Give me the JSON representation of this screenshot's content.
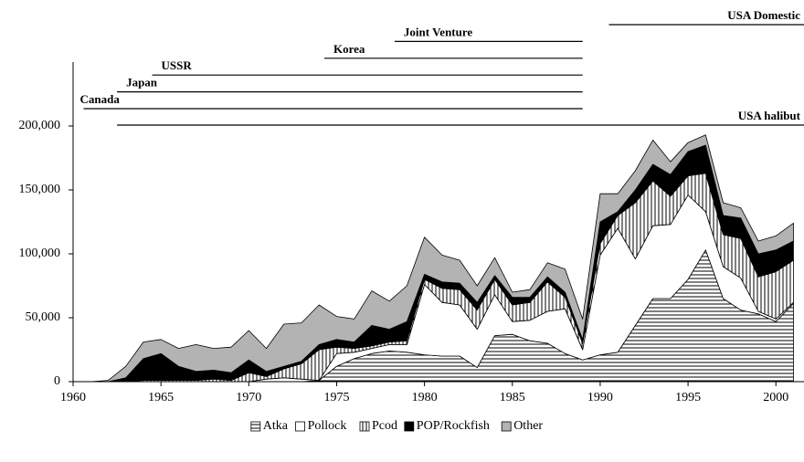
{
  "chart_data": {
    "type": "stacked_area",
    "x": [
      1961,
      1962,
      1963,
      1964,
      1965,
      1966,
      1967,
      1968,
      1969,
      1970,
      1971,
      1972,
      1973,
      1974,
      1975,
      1976,
      1977,
      1978,
      1979,
      1980,
      1981,
      1982,
      1983,
      1984,
      1985,
      1986,
      1987,
      1988,
      1989,
      1990,
      1991,
      1992,
      1993,
      1994,
      1995,
      1996,
      1997,
      1998,
      1999,
      2000,
      2001
    ],
    "series": [
      {
        "name": "Atka",
        "color": "#000000",
        "pattern": "horizontal",
        "values": [
          0,
          0,
          0,
          0,
          0,
          0,
          0,
          0,
          0,
          0,
          0,
          0,
          0,
          1000,
          12000,
          18000,
          22000,
          24000,
          23000,
          21000,
          20000,
          20000,
          11000,
          36000,
          37000,
          32000,
          30000,
          22000,
          17000,
          21000,
          23000,
          44000,
          65000,
          65000,
          80000,
          103000,
          65000,
          56000,
          53000,
          47000,
          61000
        ]
      },
      {
        "name": "Pollock",
        "color": "#ffffff",
        "pattern": "solid",
        "values": [
          0,
          0,
          0,
          0,
          0,
          0,
          0,
          0,
          0,
          0,
          2000,
          3000,
          2000,
          0,
          10000,
          5000,
          4000,
          5000,
          6000,
          55000,
          42000,
          40000,
          30000,
          32000,
          10000,
          16000,
          25000,
          35000,
          8000,
          78000,
          97000,
          52000,
          57000,
          58000,
          66000,
          30000,
          25000,
          25000,
          2000,
          2000,
          1000
        ]
      },
      {
        "name": "Pcod",
        "color": "#000000",
        "pattern": "vertical",
        "values": [
          0,
          0,
          0,
          1000,
          1000,
          1000,
          1000,
          2000,
          1000,
          7000,
          2000,
          7000,
          12000,
          24000,
          5000,
          3000,
          2000,
          2000,
          3000,
          4000,
          11000,
          12000,
          15000,
          12000,
          13000,
          14000,
          23000,
          9000,
          5000,
          9000,
          10000,
          44000,
          35000,
          22000,
          15000,
          30000,
          25000,
          31000,
          27000,
          37000,
          33000
        ]
      },
      {
        "name": "POP/Rockfish",
        "color": "#000000",
        "pattern": "solid",
        "values": [
          0,
          0,
          3000,
          17000,
          21000,
          11000,
          7000,
          7000,
          6000,
          10000,
          4000,
          2000,
          2000,
          4000,
          6000,
          5000,
          16000,
          10000,
          15000,
          4000,
          5000,
          5000,
          6000,
          3000,
          6000,
          4000,
          4000,
          4000,
          3000,
          17000,
          3000,
          10000,
          13000,
          17000,
          19000,
          22000,
          15000,
          16000,
          18000,
          17000,
          15000
        ]
      },
      {
        "name": "Other",
        "color": "#b3b3b3",
        "pattern": "solid",
        "values": [
          0,
          1000,
          9000,
          13000,
          11000,
          14000,
          21000,
          17000,
          20000,
          23000,
          18000,
          33000,
          30000,
          31000,
          18000,
          18000,
          27000,
          22000,
          28000,
          29000,
          21000,
          18000,
          13000,
          14000,
          4000,
          6000,
          11000,
          18000,
          16000,
          22000,
          14000,
          15000,
          19000,
          10000,
          7000,
          8000,
          10000,
          8000,
          10000,
          11000,
          14000
        ]
      }
    ],
    "xlim": [
      1960,
      2001.6
    ],
    "xticks": [
      1960,
      1965,
      1970,
      1975,
      1980,
      1985,
      1990,
      1995,
      2000
    ],
    "ylim": [
      0,
      250000
    ],
    "yticks": [
      0,
      {
        "value": 50000,
        "label": "50,000"
      },
      {
        "value": 100000,
        "label": "100,000"
      },
      {
        "value": 150000,
        "label": "150,000"
      },
      {
        "value": 200000,
        "label": "200,000"
      }
    ],
    "legend": "bottom",
    "periods": [
      {
        "label": "Canada",
        "start": 1960.6,
        "end": 1989
      },
      {
        "label": "Japan",
        "start": 1962.5,
        "end": 1989
      },
      {
        "label": "USSR",
        "start": 1964.5,
        "end": 1989
      },
      {
        "label": "Korea",
        "start": 1974.3,
        "end": 1989
      },
      {
        "label": "Joint Venture",
        "start": 1978.3,
        "end": 1989
      },
      {
        "label": "USA Domestic",
        "start": 1990.5,
        "end": 2002
      },
      {
        "label": "USA halibut",
        "start": 1962.5,
        "end": 2002
      }
    ]
  }
}
